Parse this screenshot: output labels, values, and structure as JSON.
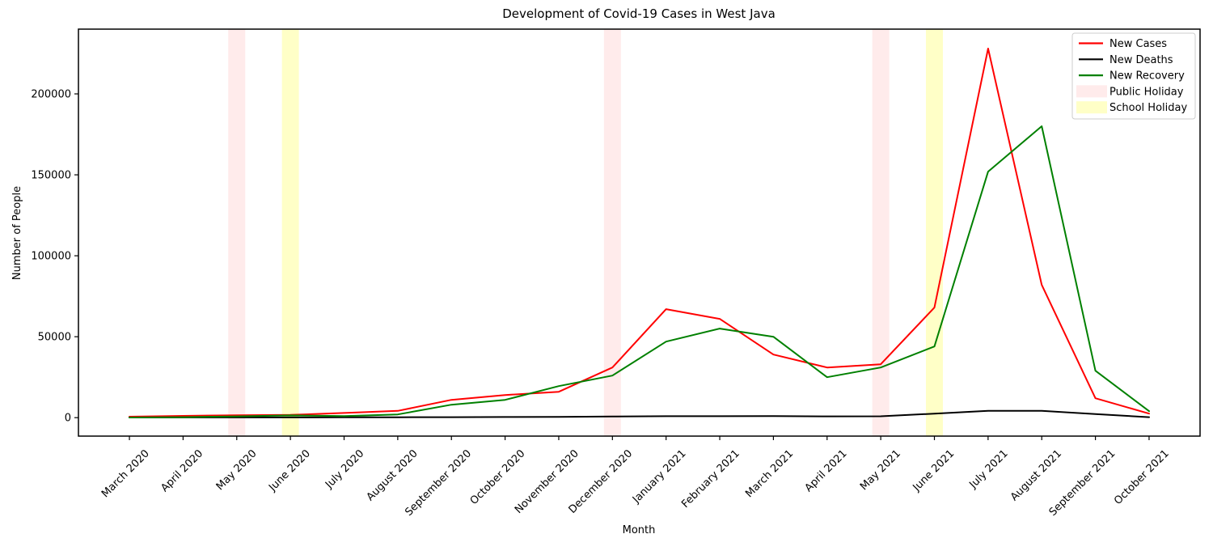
{
  "chart_data": {
    "type": "line",
    "title": "Development of Covid-19 Cases in West Java",
    "xlabel": "Month",
    "ylabel": "Number of People",
    "categories": [
      "March 2020",
      "April 2020",
      "May 2020",
      "June 2020",
      "July 2020",
      "August 2020",
      "September 2020",
      "October 2020",
      "November 2020",
      "December 2020",
      "January 2021",
      "February 2021",
      "March 2021",
      "April 2021",
      "May 2021",
      "June 2021",
      "July 2021",
      "August 2021",
      "September 2021",
      "October 2021"
    ],
    "series": [
      {
        "name": "New Cases",
        "color": "#ff0000",
        "values": [
          600,
          1100,
          1500,
          1700,
          2900,
          4200,
          11000,
          14000,
          16000,
          31000,
          67000,
          61000,
          39000,
          31000,
          33000,
          68000,
          228000,
          82000,
          12000,
          2500
        ]
      },
      {
        "name": "New Deaths",
        "color": "#000000",
        "values": [
          100,
          150,
          150,
          150,
          200,
          250,
          300,
          400,
          500,
          700,
          900,
          900,
          950,
          800,
          850,
          2500,
          4200,
          4200,
          2200,
          300
        ]
      },
      {
        "name": "New Recovery",
        "color": "#008000",
        "values": [
          100,
          300,
          800,
          1400,
          1000,
          2000,
          8000,
          11000,
          19500,
          26000,
          47000,
          55000,
          50000,
          25000,
          31000,
          44000,
          152000,
          180000,
          29000,
          4000
        ]
      }
    ],
    "bands": [
      {
        "label": "Public Holiday",
        "color": "rgba(255,0,0,0.08)",
        "months": [
          "May 2020",
          "December 2020",
          "May 2021"
        ]
      },
      {
        "label": "School Holiday",
        "color": "rgba(255,255,0,0.22)",
        "months": [
          "June 2020",
          "June 2021"
        ]
      }
    ],
    "legend": [
      "New Cases",
      "New Deaths",
      "New Recovery",
      "Public Holiday",
      "School Holiday"
    ],
    "legend_position": "upper right",
    "yticks": [
      0,
      50000,
      100000,
      150000,
      200000
    ],
    "ylim": [
      -11400,
      240000
    ],
    "grid": false
  }
}
